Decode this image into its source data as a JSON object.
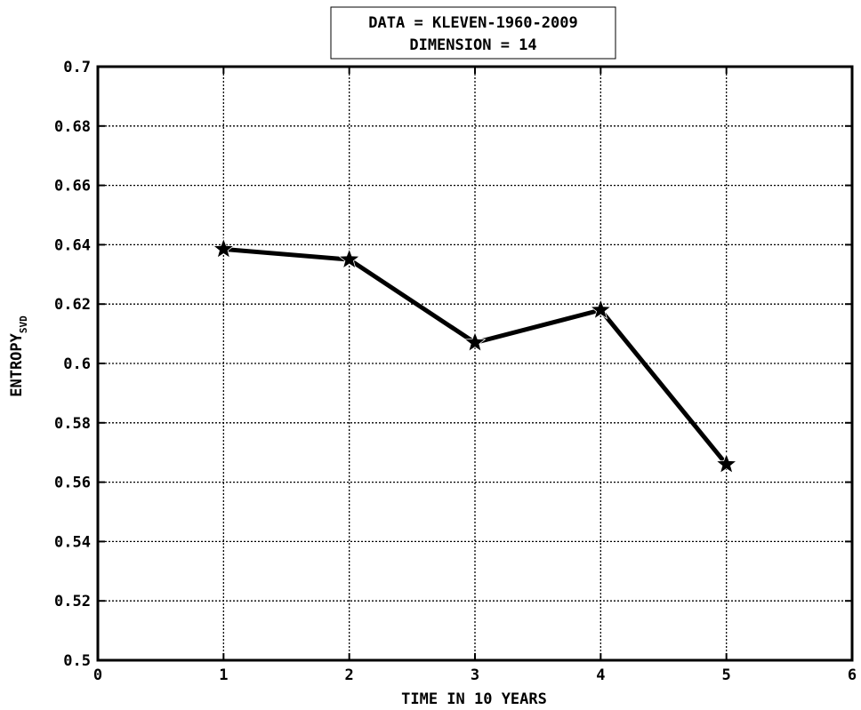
{
  "chart_data": {
    "type": "line",
    "title_lines": [
      "DATA = KLEVEN-1960-2009",
      "DIMENSION = 14"
    ],
    "xlabel": "TIME IN 10 YEARS",
    "ylabel": "ENTROPY",
    "ylabel_subscript": "SVD",
    "xlim": [
      0,
      6
    ],
    "ylim": [
      0.5,
      0.7
    ],
    "xticks": [
      0,
      1,
      2,
      3,
      4,
      5,
      6
    ],
    "xtick_labels": [
      "0",
      "1",
      "2",
      "3",
      "4",
      "5",
      "6"
    ],
    "yticks": [
      0.5,
      0.52,
      0.54,
      0.56,
      0.58,
      0.6,
      0.62,
      0.64,
      0.66,
      0.68,
      0.7
    ],
    "ytick_labels": [
      "0.5",
      "0.52",
      "0.54",
      "0.56",
      "0.58",
      "0.6",
      "0.62",
      "0.64",
      "0.66",
      "0.68",
      "0.7"
    ],
    "grid": true,
    "grid_style": "dotted",
    "marker": "star",
    "line_color": "#000000",
    "series": [
      {
        "x": [
          1,
          2,
          3,
          4,
          5
        ],
        "y": [
          0.6385,
          0.635,
          0.607,
          0.618,
          0.566
        ]
      }
    ]
  }
}
